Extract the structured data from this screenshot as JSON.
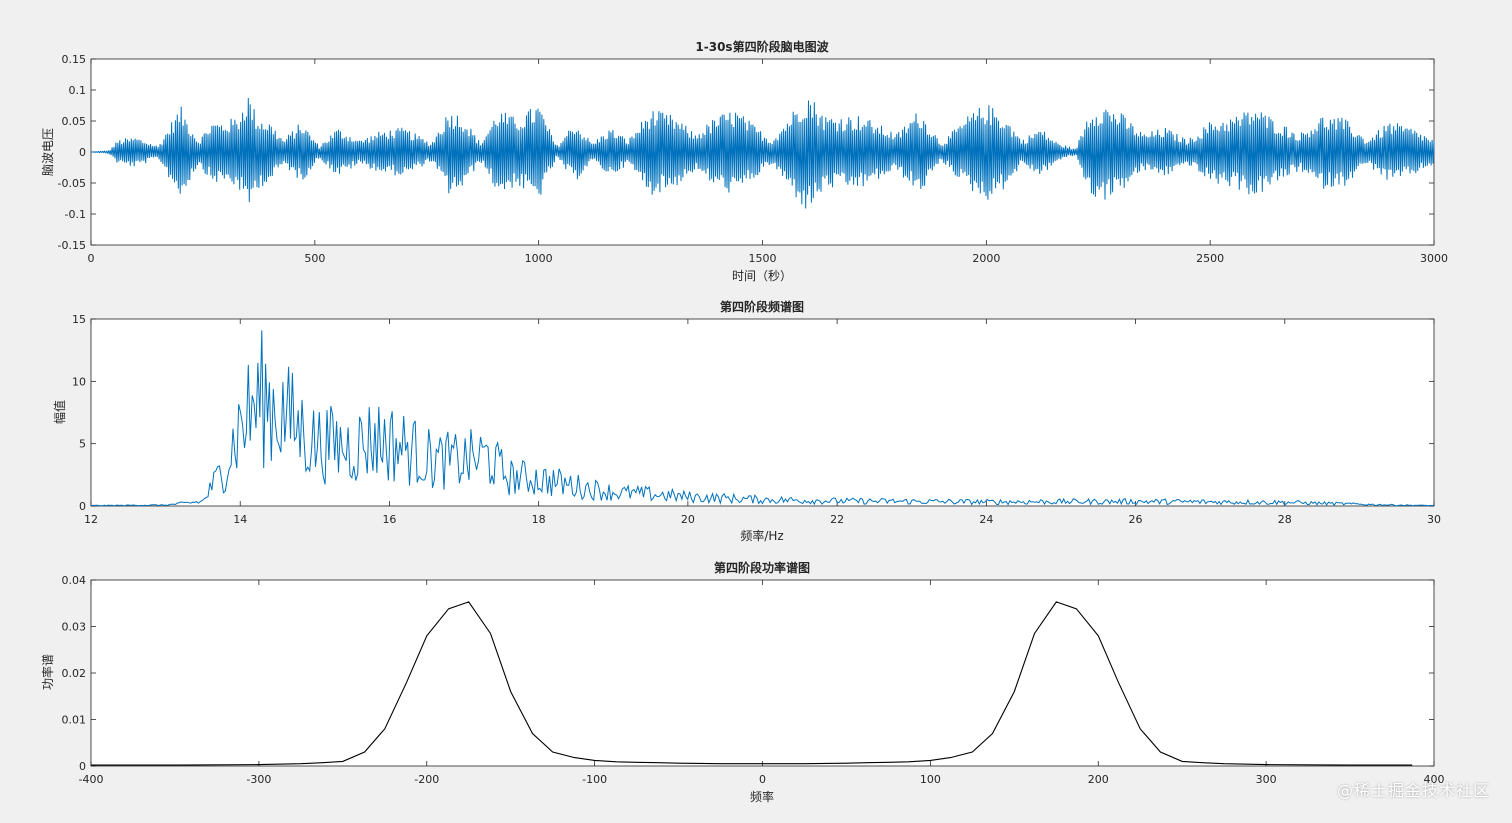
{
  "watermark": "@稀土掘金技术社区",
  "chart_data": [
    {
      "type": "line",
      "title": "1-30s第四阶段脑电图波",
      "xlabel": "时间（秒）",
      "ylabel": "脑波电压",
      "xlim": [
        0,
        3000
      ],
      "ylim": [
        -0.15,
        0.15
      ],
      "xticks": [
        0,
        500,
        1000,
        1500,
        2000,
        2500,
        3000
      ],
      "xtick_labels": [
        "0",
        "500",
        "1000",
        "1500",
        "2000",
        "2500",
        "3000"
      ],
      "yticks": [
        -0.15,
        -0.1,
        -0.05,
        0,
        0.05,
        0.1,
        0.15
      ],
      "ytick_labels": [
        "-0.15",
        "-0.1",
        "-0.05",
        "0",
        "0.05",
        "0.1",
        "0.15"
      ],
      "color": "#0072bd",
      "envelope": {
        "x": [
          0,
          40,
          60,
          100,
          150,
          180,
          200,
          240,
          270,
          300,
          330,
          350,
          370,
          400,
          430,
          470,
          510,
          550,
          600,
          650,
          700,
          760,
          800,
          830,
          870,
          910,
          950,
          1000,
          1040,
          1080,
          1120,
          1160,
          1200,
          1250,
          1300,
          1350,
          1400,
          1440,
          1480,
          1520,
          1560,
          1600,
          1640,
          1680,
          1720,
          1760,
          1800,
          1850,
          1900,
          1960,
          2000,
          2040,
          2080,
          2120,
          2160,
          2200,
          2230,
          2260,
          2300,
          2350,
          2400,
          2450,
          2500,
          2560,
          2600,
          2640,
          2700,
          2750,
          2800,
          2850,
          2900,
          2950,
          3000
        ],
        "amplitude": [
          0,
          0.002,
          0.02,
          0.025,
          0.01,
          0.05,
          0.075,
          0.02,
          0.05,
          0.05,
          0.06,
          0.1,
          0.06,
          0.05,
          0.02,
          0.05,
          0.01,
          0.04,
          0.02,
          0.035,
          0.04,
          0.015,
          0.07,
          0.06,
          0.015,
          0.07,
          0.055,
          0.08,
          0.01,
          0.05,
          0.015,
          0.04,
          0.02,
          0.07,
          0.06,
          0.03,
          0.06,
          0.07,
          0.045,
          0.02,
          0.06,
          0.1,
          0.06,
          0.06,
          0.06,
          0.045,
          0.03,
          0.07,
          0.015,
          0.06,
          0.08,
          0.06,
          0.02,
          0.04,
          0.015,
          0.005,
          0.07,
          0.08,
          0.065,
          0.03,
          0.04,
          0.02,
          0.05,
          0.06,
          0.075,
          0.055,
          0.03,
          0.06,
          0.055,
          0.02,
          0.05,
          0.04,
          0.02
        ]
      }
    },
    {
      "type": "line",
      "title": "第四阶段频谱图",
      "xlabel": "频率/Hz",
      "ylabel": "幅值",
      "xlim": [
        12,
        30
      ],
      "ylim": [
        0,
        15
      ],
      "xticks": [
        12,
        14,
        16,
        18,
        20,
        22,
        24,
        26,
        28,
        30
      ],
      "xtick_labels": [
        "12",
        "14",
        "16",
        "18",
        "20",
        "22",
        "24",
        "26",
        "28",
        "30"
      ],
      "yticks": [
        0,
        5,
        10,
        15
      ],
      "ytick_labels": [
        "0",
        "5",
        "10",
        "15"
      ],
      "color": "#0072bd",
      "envelope": {
        "x": [
          12,
          13,
          13.5,
          13.8,
          14.0,
          14.1,
          14.3,
          14.6,
          15,
          15.5,
          15.8,
          16.2,
          16.6,
          17,
          17.3,
          17.6,
          18,
          18.5,
          19,
          19.5,
          20,
          21,
          22,
          24,
          26,
          28,
          29.5,
          30
        ],
        "amplitude": [
          0.05,
          0.1,
          0.5,
          4.5,
          9,
          10,
          12,
          10,
          7,
          6.5,
          7.5,
          6.5,
          5,
          5,
          5.5,
          3.2,
          3,
          2.2,
          1.5,
          1.3,
          1,
          0.7,
          0.55,
          0.45,
          0.5,
          0.4,
          0.1,
          0.05
        ]
      }
    },
    {
      "type": "line",
      "title": "第四阶段功率谱图",
      "xlabel": "频率",
      "ylabel": "功率谱",
      "xlim": [
        -400,
        400
      ],
      "ylim": [
        0,
        0.04
      ],
      "xticks": [
        -400,
        -300,
        -200,
        -100,
        0,
        100,
        200,
        300,
        400
      ],
      "xtick_labels": [
        "-400",
        "-300",
        "-200",
        "-100",
        "0",
        "100",
        "200",
        "300",
        "400"
      ],
      "yticks": [
        0,
        0.01,
        0.02,
        0.03,
        0.04
      ],
      "ytick_labels": [
        "0",
        "0.01",
        "0.02",
        "0.03",
        "0.04"
      ],
      "color": "#000000",
      "x": [
        -400,
        -350,
        -300,
        -275,
        -262,
        -250,
        -237,
        -225,
        -212,
        -200,
        -187,
        -175,
        -162,
        -150,
        -137,
        -125,
        -112,
        -100,
        -87,
        -75,
        -62,
        -50,
        -25,
        0,
        25,
        50,
        62,
        75,
        87,
        100,
        112,
        125,
        137,
        150,
        162,
        175,
        187,
        200,
        212,
        225,
        237,
        250,
        262,
        275,
        300,
        350,
        387
      ],
      "y": [
        0.0002,
        0.0002,
        0.0003,
        0.0005,
        0.0007,
        0.001,
        0.003,
        0.008,
        0.018,
        0.028,
        0.0338,
        0.0353,
        0.0285,
        0.016,
        0.007,
        0.003,
        0.0018,
        0.0012,
        0.0009,
        0.0008,
        0.0007,
        0.0006,
        0.0005,
        0.0005,
        0.0005,
        0.0006,
        0.0007,
        0.0008,
        0.0009,
        0.0012,
        0.0018,
        0.003,
        0.007,
        0.016,
        0.0285,
        0.0353,
        0.0338,
        0.028,
        0.018,
        0.008,
        0.003,
        0.001,
        0.0007,
        0.0005,
        0.0003,
        0.0002,
        0.0002
      ]
    }
  ]
}
